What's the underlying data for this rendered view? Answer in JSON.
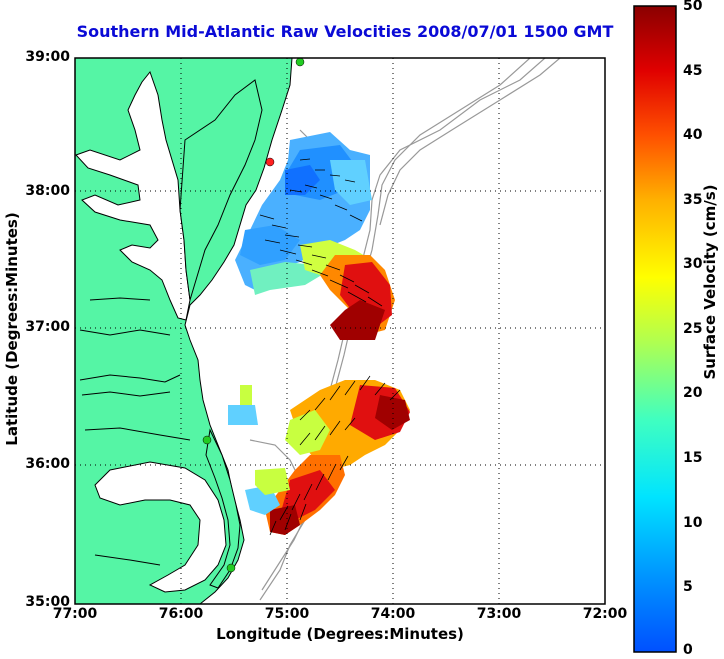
{
  "title": "Southern Mid-Atlantic Raw Velocities 2008/07/01 1500 GMT",
  "axes": {
    "xlabel": "Longitude (Degrees:Minutes)",
    "ylabel": "Latitude (Degrees:Minutes)",
    "xticks": [
      "77:00",
      "76:00",
      "75:00",
      "74:00",
      "73:00",
      "72:00"
    ],
    "yticks": [
      "39:00",
      "38:00",
      "37:00",
      "36:00",
      "35:00"
    ],
    "xlim": [
      -77,
      -72
    ],
    "ylim": [
      35,
      39
    ],
    "grid": "dotted"
  },
  "colorbar": {
    "label": "Surface Velocity (cm/s)",
    "ticks": [
      "50",
      "45",
      "40",
      "35",
      "30",
      "25",
      "20",
      "15",
      "10",
      "5",
      "0"
    ],
    "range": [
      0,
      50
    ],
    "colormap": "jet"
  },
  "colors": {
    "land": "#55f5a5",
    "coastline": "#000000",
    "bathymetry": "#999999",
    "title": "#0a0ad6",
    "stations": "#22cc22",
    "station_highlight": "#ff2020"
  }
}
